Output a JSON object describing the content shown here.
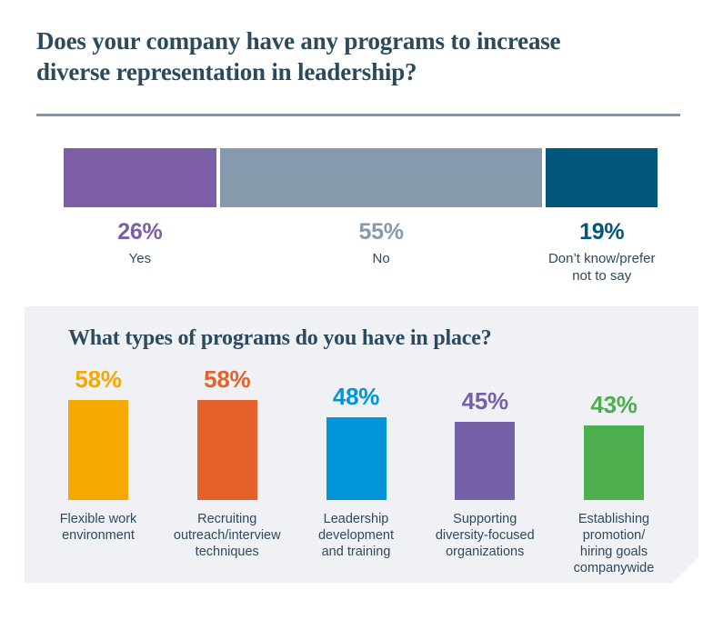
{
  "question1": {
    "title": "Does your company have any programs to increase\ndiverse representation in leadership?",
    "title_color": "#2C4A5E",
    "divider_color": "#8096AB",
    "chart": {
      "type": "stacked-bar-horizontal",
      "segments": [
        {
          "label": "Yes",
          "value": "26%",
          "pct": 26,
          "color": "#7C5FA6"
        },
        {
          "label": "No",
          "value": "55%",
          "pct": 55,
          "color": "#8799AC"
        },
        {
          "label": "Don’t know/prefer\nnot to say",
          "value": "19%",
          "pct": 19,
          "color": "#03567B"
        }
      ]
    }
  },
  "question2": {
    "title": "What types of programs do you have in place?",
    "panel_color": "#F0F1F4",
    "chart": {
      "type": "bar",
      "bars": [
        {
          "label": "Flexible work\nenvironment",
          "value": "58%",
          "pct": 58,
          "color": "#F5A800"
        },
        {
          "label": "Recruiting\noutreach/interview\ntechniques",
          "value": "58%",
          "pct": 58,
          "color": "#E4622A"
        },
        {
          "label": "Leadership\ndevelopment\nand training",
          "value": "48%",
          "pct": 48,
          "color": "#0095DA"
        },
        {
          "label": "Supporting\ndiversity-focused\norganizations",
          "value": "45%",
          "pct": 45,
          "color": "#7561A8"
        },
        {
          "label": "Establishing\npromotion/\nhiring goals\ncompanywide",
          "value": "43%",
          "pct": 43,
          "color": "#4CAE4C"
        }
      ]
    }
  },
  "chart_data": [
    {
      "type": "bar",
      "orientation": "horizontal-stacked",
      "title": "Does your company have any programs to increase diverse representation in leadership?",
      "categories": [
        "Yes",
        "No",
        "Don’t know/prefer not to say"
      ],
      "values": [
        26,
        55,
        19
      ],
      "unit": "%",
      "colors": [
        "#7C5FA6",
        "#8799AC",
        "#03567B"
      ],
      "data_labels": [
        "26%",
        "55%",
        "19%"
      ],
      "legend": "none",
      "grid": false
    },
    {
      "type": "bar",
      "orientation": "vertical",
      "title": "What types of programs do you have in place?",
      "categories": [
        "Flexible work environment",
        "Recruiting outreach/interview techniques",
        "Leadership development and training",
        "Supporting diversity-focused organizations",
        "Establishing promotion/ hiring goals companywide"
      ],
      "values": [
        58,
        58,
        48,
        45,
        43
      ],
      "unit": "%",
      "colors": [
        "#F5A800",
        "#E4622A",
        "#0095DA",
        "#7561A8",
        "#4CAE4C"
      ],
      "data_labels": [
        "58%",
        "58%",
        "48%",
        "45%",
        "43%"
      ],
      "ylim": [
        0,
        100
      ],
      "legend": "none",
      "grid": false
    }
  ]
}
